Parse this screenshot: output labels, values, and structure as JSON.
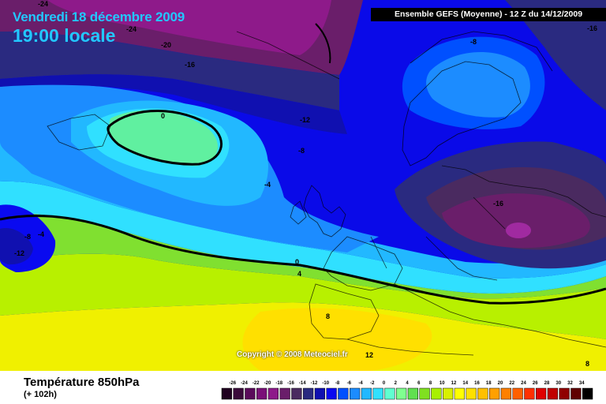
{
  "header": {
    "date": "Vendredi 18 décembre 2009",
    "local_time": "19:00 locale",
    "model_run": "Ensemble GEFS (Moyenne) - 12 Z du 14/12/2009"
  },
  "footer": {
    "field_title": "Température 850hPa",
    "lead_time": "(+ 102h)",
    "copyright": "Copyright © 2008 Meteociel.fr"
  },
  "contour_labels": [
    {
      "text": "-24",
      "area": "top-left"
    },
    {
      "text": "-24",
      "area": "northwest"
    },
    {
      "text": "-20",
      "area": "northwest"
    },
    {
      "text": "-16",
      "area": "north"
    },
    {
      "text": "-12",
      "area": "north-atlantic"
    },
    {
      "text": "-8",
      "area": "scandinavia"
    },
    {
      "text": "-16",
      "area": "top-right"
    },
    {
      "text": "0",
      "area": "greenland-sea"
    },
    {
      "text": "-8",
      "area": "north-sea"
    },
    {
      "text": "-4",
      "area": "atlantic"
    },
    {
      "text": "-16",
      "area": "eastern-europe"
    },
    {
      "text": "-8",
      "area": "west"
    },
    {
      "text": "-4",
      "area": "west"
    },
    {
      "text": "-12",
      "area": "far-west"
    },
    {
      "text": "0",
      "area": "bay-of-biscay"
    },
    {
      "text": "4",
      "area": "bay-of-biscay"
    },
    {
      "text": "8",
      "area": "iberia"
    },
    {
      "text": "12",
      "area": "north-africa"
    },
    {
      "text": "8",
      "area": "bottom-right"
    }
  ],
  "legend": {
    "ticks": [
      "-26",
      "-24",
      "-22",
      "-20",
      "-18",
      "-16",
      "-14",
      "-12",
      "-10",
      "-8",
      "-6",
      "-4",
      "-2",
      "0",
      "2",
      "4",
      "6",
      "8",
      "10",
      "12",
      "14",
      "16",
      "18",
      "20",
      "22",
      "24",
      "26",
      "28",
      "30",
      "32",
      "34"
    ],
    "colors": [
      "#200020",
      "#3a0a3a",
      "#5a0a5a",
      "#7a1078",
      "#8e1a8a",
      "#6a1e6a",
      "#4a2a60",
      "#2a2a80",
      "#1010b0",
      "#0a0af0",
      "#0050ff",
      "#1c8cff",
      "#22b8ff",
      "#30e0ff",
      "#60ffd0",
      "#80ff90",
      "#60e050",
      "#80e020",
      "#a8f000",
      "#d8f000",
      "#ffff00",
      "#ffe000",
      "#ffc000",
      "#ffa000",
      "#ff8000",
      "#ff6000",
      "#ff3000",
      "#e00000",
      "#c00000",
      "#900000",
      "#600000",
      "#000000"
    ]
  }
}
